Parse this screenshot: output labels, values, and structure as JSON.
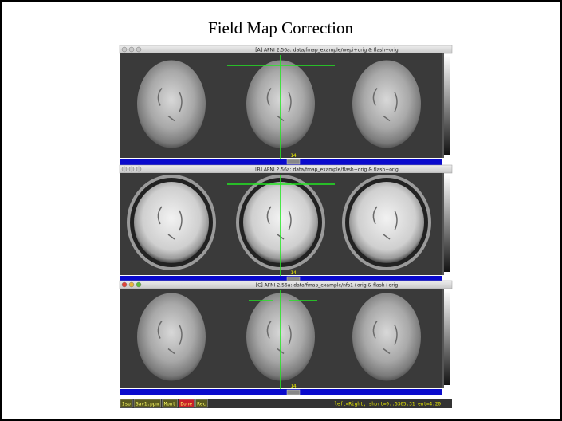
{
  "header": {
    "title": "Field Map Correction"
  },
  "windows": [
    {
      "title": "[A] AFNI 2.56a: data/fmap_example/wepi+orig & flash+orig",
      "slice_label": "14"
    },
    {
      "title": "[B] AFNI 2.56a: data/fmap_example/flash+orig & flash+orig",
      "slice_label": "14"
    },
    {
      "title": "[C] AFNI 2.56a: data/fmap_example/nfs1+orig & flash+orig",
      "slice_label": "14"
    }
  ],
  "buttons": [
    "Iso",
    "Sav1.ppm",
    "Mont",
    "Done",
    "Rec"
  ],
  "status": "left=Right, short=0..5365.31 ent=4.20"
}
